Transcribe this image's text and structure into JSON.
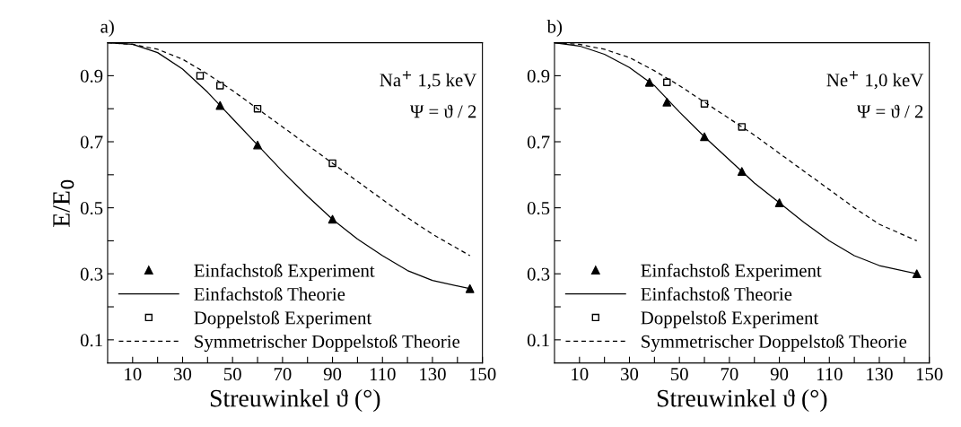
{
  "chart_data": [
    {
      "type": "line",
      "title": "a)",
      "xlabel": "Streuwinkel ϑ (°)",
      "ylabel": "E/E$_{0}$",
      "xlim": [
        0,
        150
      ],
      "ylim": [
        0.03,
        1.0
      ],
      "xticks": [
        10,
        {
          "value": 20,
          "label": null
        },
        30,
        {
          "value": 40,
          "label": null
        },
        50,
        {
          "value": 60,
          "label": null
        },
        70,
        {
          "value": 80,
          "label": null
        },
        90,
        {
          "value": 100,
          "label": null
        },
        110,
        {
          "value": 120,
          "label": null
        },
        130,
        {
          "value": 140,
          "label": null
        },
        150
      ],
      "yticks": [
        0.1,
        {
          "value": 0.2,
          "label": null
        },
        0.3,
        {
          "value": 0.4,
          "label": null
        },
        0.5,
        {
          "value": 0.6,
          "label": null
        },
        0.7,
        {
          "value": 0.8,
          "label": null
        },
        0.9,
        {
          "value": 1.0,
          "label": null
        }
      ],
      "annotations": [
        "Na$^{+}$ 1,5 keV",
        "Ψ = ϑ / 2"
      ],
      "legend": "bottom left",
      "grid": false,
      "series": [
        {
          "name": "Einfachstoß Experiment",
          "type": "scatter",
          "marker": "triangle",
          "color": "#000000",
          "x": [
            45,
            60,
            90,
            145
          ],
          "values": [
            0.81,
            0.69,
            0.465,
            0.255
          ]
        },
        {
          "name": "Einfachstoß Theorie",
          "type": "line",
          "line_style": "solid",
          "color": "#000000",
          "x": [
            0,
            10,
            20,
            30,
            40,
            50,
            60,
            70,
            80,
            90,
            100,
            110,
            120,
            130,
            145
          ],
          "values": [
            1.0,
            0.995,
            0.97,
            0.92,
            0.85,
            0.77,
            0.69,
            0.61,
            0.535,
            0.465,
            0.405,
            0.355,
            0.31,
            0.28,
            0.255
          ]
        },
        {
          "name": "Doppelstoß Experiment",
          "type": "scatter",
          "marker": "square",
          "color": "#000000",
          "x": [
            37,
            45,
            60,
            90
          ],
          "values": [
            0.9,
            0.87,
            0.8,
            0.635
          ]
        },
        {
          "name": "Symmetrischer Doppelstoß Theorie",
          "type": "line",
          "line_style": "dashed",
          "color": "#000000",
          "x": [
            0,
            10,
            20,
            30,
            40,
            50,
            60,
            70,
            80,
            90,
            100,
            110,
            120,
            130,
            145
          ],
          "values": [
            1.0,
            0.995,
            0.98,
            0.95,
            0.905,
            0.855,
            0.8,
            0.745,
            0.69,
            0.635,
            0.58,
            0.525,
            0.47,
            0.42,
            0.355
          ]
        }
      ]
    },
    {
      "type": "line",
      "title": "b)",
      "xlabel": "Streuwinkel ϑ (°)",
      "xlim": [
        0,
        150
      ],
      "ylim": [
        0.03,
        1.0
      ],
      "xticks": [
        10,
        {
          "value": 20,
          "label": null
        },
        30,
        {
          "value": 40,
          "label": null
        },
        50,
        {
          "value": 60,
          "label": null
        },
        70,
        {
          "value": 80,
          "label": null
        },
        90,
        {
          "value": 100,
          "label": null
        },
        110,
        {
          "value": 120,
          "label": null
        },
        130,
        {
          "value": 140,
          "label": null
        },
        150
      ],
      "yticks": [
        0.1,
        {
          "value": 0.2,
          "label": null
        },
        0.3,
        {
          "value": 0.4,
          "label": null
        },
        0.5,
        {
          "value": 0.6,
          "label": null
        },
        0.7,
        {
          "value": 0.8,
          "label": null
        },
        0.9,
        {
          "value": 1.0,
          "label": null
        }
      ],
      "annotations": [
        "Ne$^{+}$ 1,0 keV",
        "Ψ = ϑ / 2"
      ],
      "legend": "bottom left",
      "grid": false,
      "series": [
        {
          "name": "Einfachstoß Experiment",
          "type": "scatter",
          "marker": "triangle",
          "color": "#000000",
          "x": [
            38,
            45,
            60,
            75,
            90,
            145
          ],
          "values": [
            0.88,
            0.82,
            0.715,
            0.61,
            0.515,
            0.3
          ]
        },
        {
          "name": "Einfachstoß Theorie",
          "type": "line",
          "line_style": "solid",
          "color": "#000000",
          "x": [
            0,
            10,
            20,
            30,
            40,
            50,
            60,
            70,
            80,
            90,
            100,
            110,
            120,
            130,
            145
          ],
          "values": [
            1.0,
            0.99,
            0.965,
            0.925,
            0.87,
            0.79,
            0.715,
            0.645,
            0.575,
            0.515,
            0.455,
            0.4,
            0.355,
            0.325,
            0.3
          ]
        },
        {
          "name": "Doppelstoß Experiment",
          "type": "scatter",
          "marker": "square",
          "color": "#000000",
          "x": [
            45,
            60,
            75
          ],
          "values": [
            0.88,
            0.815,
            0.745
          ]
        },
        {
          "name": "Symmetrischer Doppelstoß Theorie",
          "type": "line",
          "line_style": "dashed",
          "color": "#000000",
          "x": [
            0,
            10,
            20,
            30,
            40,
            50,
            60,
            70,
            80,
            90,
            100,
            110,
            120,
            130,
            145
          ],
          "values": [
            1.0,
            0.995,
            0.98,
            0.955,
            0.915,
            0.87,
            0.82,
            0.77,
            0.72,
            0.665,
            0.61,
            0.555,
            0.5,
            0.45,
            0.4
          ]
        }
      ]
    }
  ]
}
